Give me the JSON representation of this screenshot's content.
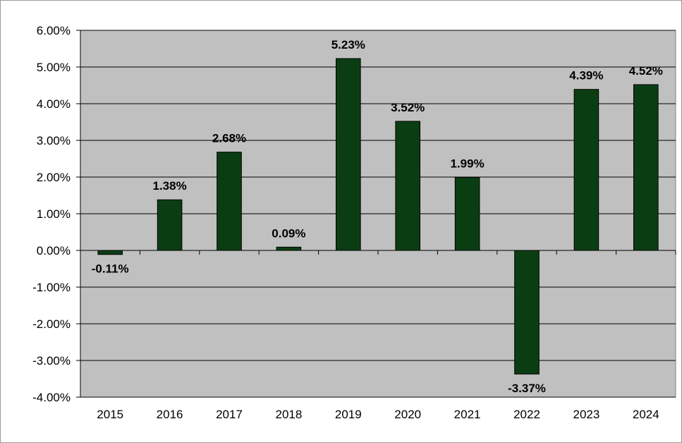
{
  "chart_data": {
    "type": "bar",
    "title": "",
    "xlabel": "",
    "ylabel": "",
    "categories": [
      "2015",
      "2016",
      "2017",
      "2018",
      "2019",
      "2020",
      "2021",
      "2022",
      "2023",
      "2024"
    ],
    "series": [
      {
        "values": [
          -0.11,
          1.38,
          2.68,
          0.09,
          5.23,
          3.52,
          1.99,
          -3.37,
          4.39,
          4.52
        ]
      }
    ],
    "data_labels": [
      "-0.11%",
      "1.38%",
      "2.68%",
      "0.09%",
      "5.23%",
      "3.52%",
      "1.99%",
      "-3.37%",
      "4.39%",
      "4.52%"
    ],
    "ylim": [
      -4,
      6
    ],
    "y_ticks": [
      6,
      5,
      4,
      3,
      2,
      1,
      0,
      -1,
      -2,
      -3,
      -4
    ],
    "y_tick_labels": [
      "6.00%",
      "5.00%",
      "4.00%",
      "3.00%",
      "2.00%",
      "1.00%",
      "0.00%",
      "-1.00%",
      "-2.00%",
      "-3.00%",
      "-4.00%"
    ],
    "grid": true,
    "legend": "none",
    "colors": {
      "bar": "#0b3d13",
      "plot_background": "#c0c0c0",
      "gridline": "#000000"
    }
  }
}
